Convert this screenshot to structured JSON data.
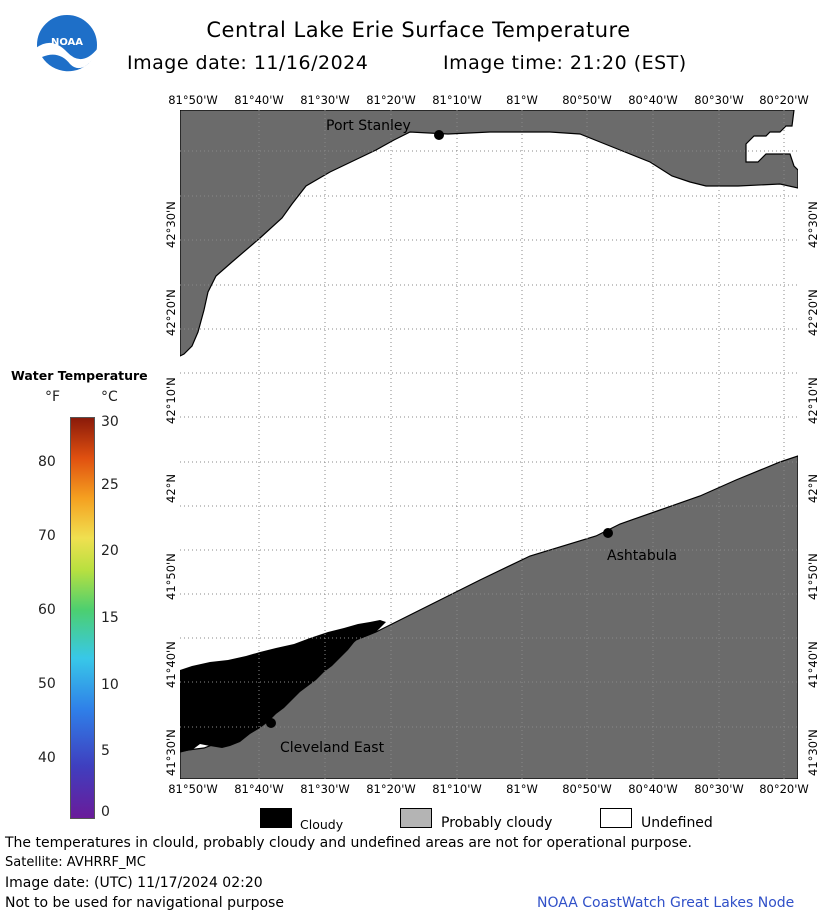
{
  "header": {
    "title": "Central Lake Erie Surface Temperature",
    "image_date": "Image date: 11/16/2024",
    "image_time": "Image time: 21:20 (EST)"
  },
  "logo": {
    "text": "NOAA",
    "icon": "noaa-logo"
  },
  "map": {
    "lon_labels": [
      "81°50'W",
      "81°40'W",
      "81°30'W",
      "81°20'W",
      "81°10'W",
      "81°W",
      "80°50'W",
      "80°40'W",
      "80°30'W",
      "80°20'W"
    ],
    "lat_labels": [
      "42°30'N",
      "42°20'N",
      "42°10'N",
      "42°N",
      "41°50'N",
      "41°40'N",
      "41°30'N"
    ],
    "places": [
      {
        "name": "Port Stanley"
      },
      {
        "name": "Ashtabula"
      },
      {
        "name": "Cleveland East"
      }
    ],
    "colors": {
      "land": "#6b6b6b",
      "undefined": "#ffffff",
      "cloudy": "#000000",
      "grid": "#8a8a8a"
    }
  },
  "legend": {
    "title": "Water Temperature",
    "unit_f": "°F",
    "unit_c": "°C",
    "f_labels": [
      "80",
      "70",
      "60",
      "50",
      "40"
    ],
    "c_labels": [
      "30",
      "25",
      "20",
      "15",
      "10",
      "5",
      "0"
    ]
  },
  "key": {
    "cloudy": "Cloudy",
    "probably_cloudy": "Probably cloudy",
    "undefined": "Undefined",
    "colors": {
      "cloudy": "#000000",
      "probably_cloudy": "#b4b4b4",
      "undefined": "#ffffff"
    }
  },
  "footer": {
    "disclaimer": "The temperatures in clould, probably cloudy and undefined areas are not for operational purpose.",
    "satellite": "Satellite: AVHRRF_MC",
    "utc_date": "Image date: (UTC) 11/17/2024  02:20",
    "nav_warning": "Not to be used for navigational purpose",
    "credit": "NOAA CoastWatch Great Lakes Node"
  }
}
